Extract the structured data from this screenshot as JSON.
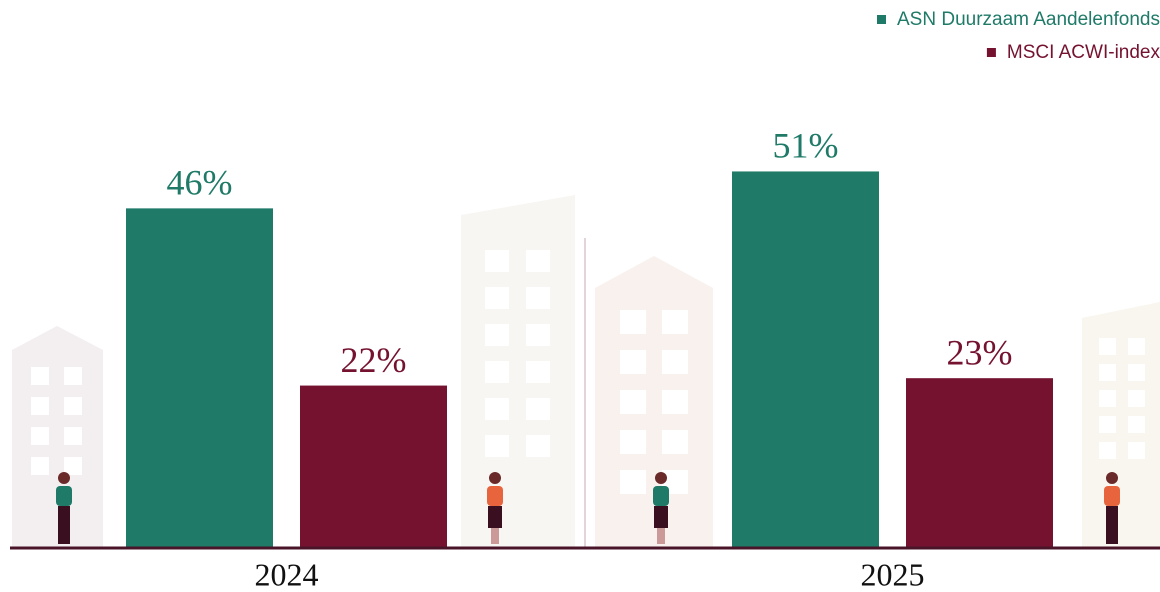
{
  "chart_data": {
    "type": "bar",
    "categories": [
      "2024",
      "2025"
    ],
    "series": [
      {
        "name": "ASN Duurzaam Aandelenfonds",
        "color": "#1f7a68",
        "values": [
          46,
          51
        ],
        "value_labels": [
          "46%",
          "51%"
        ]
      },
      {
        "name": "MSCI ACWI-index",
        "color": "#741230",
        "values": [
          22,
          23
        ],
        "value_labels": [
          "22%",
          "23%"
        ]
      }
    ],
    "ylim": [
      0,
      60
    ]
  }
}
